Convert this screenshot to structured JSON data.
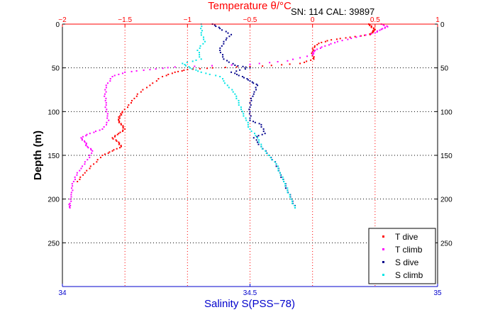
{
  "chart_data": {
    "type": "scatter",
    "header_text": "SN: 114  CAL: 39897",
    "top_axis": {
      "label": "Temperature θ/°C",
      "range": [
        -2,
        1
      ],
      "ticks": [
        -2,
        -1.5,
        -1,
        -0.5,
        0,
        0.5,
        1
      ],
      "tick_labels": [
        "−2",
        "−1.5",
        "−1",
        "−0.5",
        "0",
        "0.5",
        "1"
      ],
      "color": "#ff0000"
    },
    "bottom_axis": {
      "label": "Salinity S(PSS−78)",
      "range": [
        34,
        35
      ],
      "ticks": [
        34,
        34.5,
        35
      ],
      "tick_labels": [
        "34",
        "34.5",
        "35"
      ],
      "color": "#0000cc"
    },
    "y_axis": {
      "label": "Depth (m)",
      "range": [
        0,
        300
      ],
      "reversed": true,
      "ticks": [
        0,
        50,
        100,
        150,
        200,
        250
      ],
      "tick_labels": [
        "0",
        "50",
        "100",
        "150",
        "200",
        "250"
      ]
    },
    "grid": true,
    "legend_position": "bottom-right",
    "series": [
      {
        "name": "T dive",
        "axis": "temperature",
        "color": "#ff0000",
        "points": [
          [
            0.45,
            0
          ],
          [
            0.47,
            3
          ],
          [
            0.5,
            6
          ],
          [
            0.48,
            9
          ],
          [
            0.46,
            12
          ],
          [
            0.3,
            15
          ],
          [
            0.15,
            18
          ],
          [
            0.05,
            22
          ],
          [
            0,
            28
          ],
          [
            0,
            35
          ],
          [
            0.01,
            40
          ],
          [
            -0.1,
            45
          ],
          [
            -0.4,
            48
          ],
          [
            -0.8,
            50
          ],
          [
            -1.0,
            52
          ],
          [
            -1.1,
            55
          ],
          [
            -1.2,
            60
          ],
          [
            -1.3,
            70
          ],
          [
            -1.4,
            80
          ],
          [
            -1.45,
            90
          ],
          [
            -1.52,
            100
          ],
          [
            -1.54,
            105
          ],
          [
            -1.55,
            110
          ],
          [
            -1.53,
            115
          ],
          [
            -1.5,
            120
          ],
          [
            -1.55,
            125
          ],
          [
            -1.6,
            130
          ],
          [
            -1.55,
            135
          ],
          [
            -1.53,
            140
          ],
          [
            -1.6,
            145
          ],
          [
            -1.68,
            150
          ],
          [
            -1.75,
            160
          ],
          [
            -1.82,
            170
          ],
          [
            -1.88,
            180
          ]
        ]
      },
      {
        "name": "T climb",
        "axis": "temperature",
        "color": "#ff00ff",
        "points": [
          [
            0.55,
            0
          ],
          [
            0.6,
            3
          ],
          [
            0.55,
            6
          ],
          [
            0.5,
            10
          ],
          [
            0.35,
            15
          ],
          [
            0.2,
            20
          ],
          [
            0.1,
            25
          ],
          [
            0.02,
            30
          ],
          [
            0,
            35
          ],
          [
            -0.2,
            42
          ],
          [
            -0.5,
            46
          ],
          [
            -1.1,
            49
          ],
          [
            -1.3,
            52
          ],
          [
            -1.5,
            55
          ],
          [
            -1.6,
            60
          ],
          [
            -1.65,
            70
          ],
          [
            -1.66,
            80
          ],
          [
            -1.65,
            90
          ],
          [
            -1.65,
            100
          ],
          [
            -1.63,
            110
          ],
          [
            -1.68,
            120
          ],
          [
            -1.78,
            125
          ],
          [
            -1.85,
            130
          ],
          [
            -1.82,
            135
          ],
          [
            -1.8,
            140
          ],
          [
            -1.76,
            145
          ],
          [
            -1.8,
            155
          ],
          [
            -1.85,
            165
          ],
          [
            -1.9,
            175
          ],
          [
            -1.92,
            185
          ],
          [
            -1.93,
            195
          ],
          [
            -1.94,
            205
          ],
          [
            -1.94,
            210
          ]
        ]
      },
      {
        "name": "S dive",
        "axis": "salinity",
        "color": "#00008b",
        "points": [
          [
            34.4,
            0
          ],
          [
            34.42,
            5
          ],
          [
            34.45,
            12
          ],
          [
            34.43,
            20
          ],
          [
            34.42,
            30
          ],
          [
            34.43,
            40
          ],
          [
            34.46,
            47
          ],
          [
            34.5,
            50
          ],
          [
            34.45,
            55
          ],
          [
            34.48,
            60
          ],
          [
            34.5,
            65
          ],
          [
            34.52,
            70
          ],
          [
            34.51,
            80
          ],
          [
            34.5,
            90
          ],
          [
            34.5,
            100
          ],
          [
            34.5,
            110
          ],
          [
            34.53,
            115
          ],
          [
            34.54,
            125
          ],
          [
            34.51,
            130
          ],
          [
            34.53,
            140
          ],
          [
            34.55,
            150
          ],
          [
            34.57,
            160
          ],
          [
            34.58,
            170
          ],
          [
            34.59,
            180
          ],
          [
            34.6,
            190
          ],
          [
            34.61,
            200
          ],
          [
            34.62,
            210
          ]
        ]
      },
      {
        "name": "S climb",
        "axis": "salinity",
        "color": "#00e5e5",
        "points": [
          [
            34.37,
            0
          ],
          [
            34.37,
            10
          ],
          [
            34.38,
            20
          ],
          [
            34.36,
            30
          ],
          [
            34.37,
            40
          ],
          [
            34.32,
            45
          ],
          [
            34.34,
            50
          ],
          [
            34.37,
            55
          ],
          [
            34.42,
            60
          ],
          [
            34.44,
            70
          ],
          [
            34.46,
            80
          ],
          [
            34.47,
            90
          ],
          [
            34.48,
            100
          ],
          [
            34.49,
            110
          ],
          [
            34.5,
            120
          ],
          [
            34.52,
            130
          ],
          [
            34.53,
            140
          ],
          [
            34.55,
            150
          ],
          [
            34.57,
            160
          ],
          [
            34.58,
            170
          ],
          [
            34.59,
            180
          ],
          [
            34.6,
            190
          ],
          [
            34.61,
            200
          ],
          [
            34.62,
            210
          ]
        ]
      }
    ]
  }
}
